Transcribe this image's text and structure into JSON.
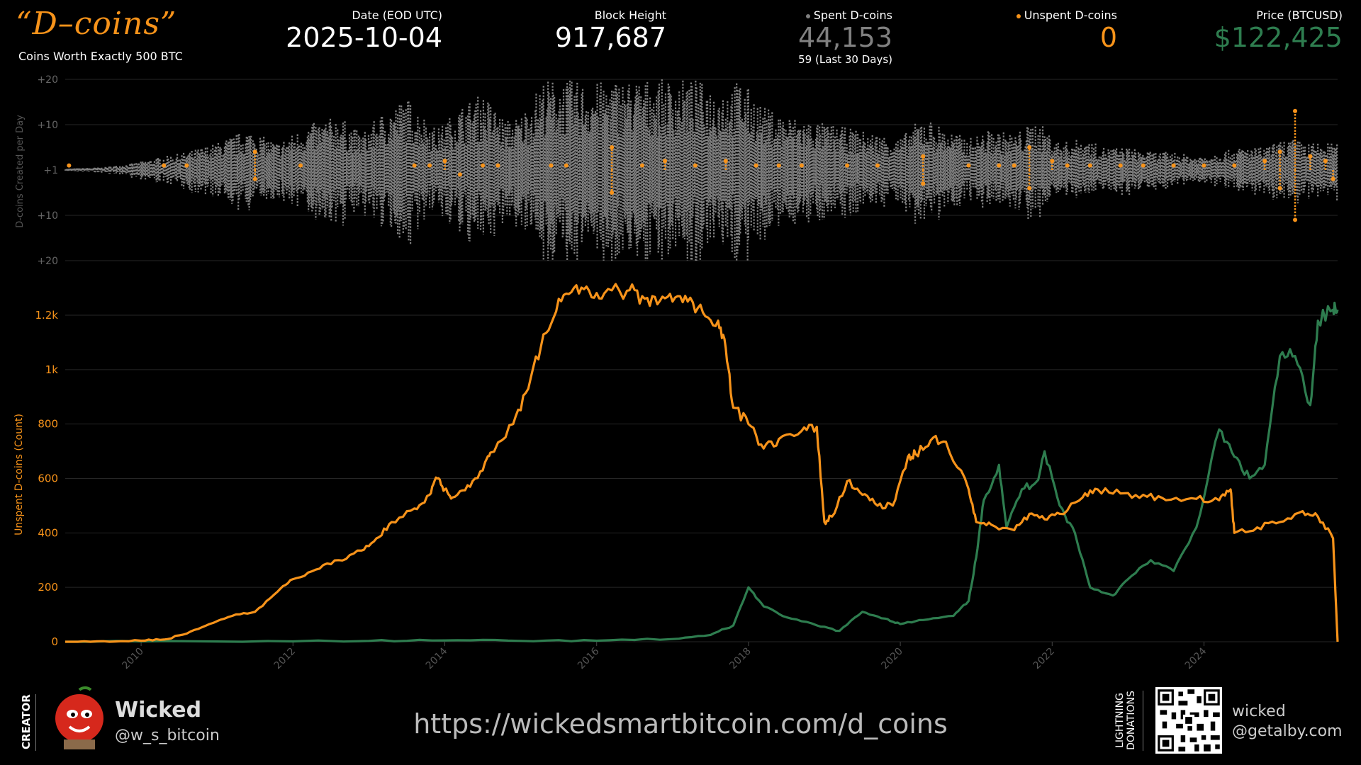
{
  "header": {
    "brand_script": "“D–coins”",
    "brand_subtitle": "Coins Worth Exactly 500 BTC",
    "date_label": "Date (EOD UTC)",
    "date_value": "2025-10-04",
    "block_label": "Block Height",
    "block_value": "917,687",
    "spent_label": "Spent D-coins",
    "spent_value": "44,153",
    "spent_sub": "59 (Last 30 Days)",
    "unspent_label": "Unspent D-coins",
    "unspent_value": "0",
    "price_label": "Price (BTCUSD)",
    "price_value": "$122,425"
  },
  "colors": {
    "spent": "#808080",
    "unspent": "#f7931a",
    "price": "#2e7d4f",
    "white": "#ffffff",
    "grid": "#262626"
  },
  "chart_data": [
    {
      "type": "scatter",
      "ylabel": "D-coins Created per Day",
      "yticks": [
        "+20",
        "+10",
        "+1",
        "+10",
        "+20"
      ],
      "description_series": [
        {
          "name": "Spent D-coins",
          "color": "#808080"
        },
        {
          "name": "Unspent D-coins",
          "color": "#f7931a"
        }
      ],
      "xlim": [
        2009.0,
        2025.76
      ],
      "ylim": [
        -20,
        20
      ],
      "spent_envelope": {
        "x": [
          2009.0,
          2009.5,
          2009.9,
          2010.3,
          2010.6,
          2011.0,
          2011.4,
          2011.8,
          2012.2,
          2012.6,
          2012.9,
          2013.2,
          2013.5,
          2013.9,
          2014.2,
          2014.5,
          2014.8,
          2015.0,
          2015.3,
          2015.6,
          2015.9,
          2016.2,
          2016.5,
          2016.8,
          2017.1,
          2017.3,
          2017.6,
          2017.9,
          2018.2,
          2018.5,
          2018.8,
          2019.1,
          2019.4,
          2019.7,
          2020.0,
          2020.3,
          2020.6,
          2020.9,
          2021.2,
          2021.5,
          2021.8,
          2022.1,
          2022.4,
          2022.7,
          2023.0,
          2023.3,
          2023.6,
          2023.9,
          2024.2,
          2024.5,
          2024.8,
          2025.1,
          2025.4,
          2025.76
        ],
        "amp": [
          0.3,
          0.6,
          1.5,
          3,
          4,
          6,
          9,
          6,
          10,
          12,
          8,
          13,
          16,
          9,
          14,
          17,
          11,
          12,
          20,
          20,
          19,
          20,
          20,
          20,
          20,
          20,
          18,
          20,
          14,
          12,
          11,
          10,
          9,
          8,
          7,
          12,
          9,
          7,
          9,
          8,
          11,
          6,
          7,
          5,
          5,
          4,
          4,
          3,
          4,
          5,
          5,
          7,
          6,
          6
        ]
      },
      "unspent_points": [
        {
          "x": 2009.05,
          "y": 1
        },
        {
          "x": 2010.3,
          "y": 1
        },
        {
          "x": 2010.6,
          "y": 1
        },
        {
          "x": 2011.5,
          "y": 4
        },
        {
          "x": 2011.5,
          "y": -2
        },
        {
          "x": 2012.1,
          "y": 1
        },
        {
          "x": 2013.6,
          "y": 1
        },
        {
          "x": 2013.8,
          "y": 1
        },
        {
          "x": 2014.0,
          "y": 2
        },
        {
          "x": 2014.2,
          "y": -1
        },
        {
          "x": 2014.5,
          "y": 1
        },
        {
          "x": 2014.7,
          "y": 1
        },
        {
          "x": 2015.4,
          "y": 1
        },
        {
          "x": 2015.6,
          "y": 1
        },
        {
          "x": 2016.2,
          "y": 5
        },
        {
          "x": 2016.2,
          "y": -5
        },
        {
          "x": 2016.6,
          "y": 1
        },
        {
          "x": 2016.9,
          "y": 2
        },
        {
          "x": 2017.3,
          "y": 1
        },
        {
          "x": 2017.7,
          "y": 2
        },
        {
          "x": 2018.1,
          "y": 1
        },
        {
          "x": 2018.4,
          "y": 1
        },
        {
          "x": 2018.7,
          "y": 1
        },
        {
          "x": 2019.3,
          "y": 1
        },
        {
          "x": 2019.7,
          "y": 1
        },
        {
          "x": 2020.3,
          "y": 3
        },
        {
          "x": 2020.3,
          "y": -3
        },
        {
          "x": 2020.9,
          "y": 1
        },
        {
          "x": 2021.3,
          "y": 1
        },
        {
          "x": 2021.5,
          "y": 1
        },
        {
          "x": 2021.7,
          "y": 5
        },
        {
          "x": 2021.7,
          "y": -4
        },
        {
          "x": 2022.0,
          "y": 2
        },
        {
          "x": 2022.2,
          "y": 1
        },
        {
          "x": 2022.5,
          "y": 1
        },
        {
          "x": 2022.9,
          "y": 1
        },
        {
          "x": 2023.2,
          "y": 1
        },
        {
          "x": 2023.6,
          "y": 1
        },
        {
          "x": 2024.0,
          "y": 1
        },
        {
          "x": 2024.4,
          "y": 1
        },
        {
          "x": 2024.8,
          "y": 2
        },
        {
          "x": 2025.0,
          "y": 4
        },
        {
          "x": 2025.0,
          "y": -4
        },
        {
          "x": 2025.2,
          "y": 13
        },
        {
          "x": 2025.2,
          "y": -11
        },
        {
          "x": 2025.4,
          "y": 3
        },
        {
          "x": 2025.6,
          "y": 2
        },
        {
          "x": 2025.7,
          "y": -2
        }
      ]
    },
    {
      "type": "line",
      "ylabel": "Unspent D-coins (Count)",
      "xlim": [
        2009.0,
        2025.76
      ],
      "ylim": [
        0,
        1350
      ],
      "yticks": [
        0,
        200,
        400,
        600,
        800,
        1000,
        1200
      ],
      "ytick_labels": [
        "0",
        "200",
        "400",
        "600",
        "800",
        "1k",
        "1.2k"
      ],
      "xticks": [
        2010,
        2012,
        2014,
        2016,
        2018,
        2020,
        2022,
        2024
      ],
      "series": [
        {
          "name": "Unspent D-coins",
          "color": "#f7931a",
          "x": [
            2009.0,
            2009.5,
            2010.0,
            2010.3,
            2010.6,
            2010.9,
            2011.2,
            2011.5,
            2011.8,
            2012.0,
            2012.3,
            2012.6,
            2012.9,
            2013.1,
            2013.3,
            2013.6,
            2013.8,
            2013.9,
            2014.0,
            2014.1,
            2014.3,
            2014.5,
            2014.6,
            2014.9,
            2015.1,
            2015.3,
            2015.5,
            2015.7,
            2015.9,
            2016.1,
            2016.4,
            2016.6,
            2016.8,
            2017.0,
            2017.2,
            2017.4,
            2017.6,
            2017.7,
            2017.8,
            2018.0,
            2018.2,
            2018.4,
            2018.7,
            2018.9,
            2019.0,
            2019.1,
            2019.3,
            2019.5,
            2019.7,
            2019.9,
            2020.1,
            2020.2,
            2020.4,
            2020.6,
            2020.9,
            2021.0,
            2021.2,
            2021.5,
            2021.7,
            2021.9,
            2022.1,
            2022.4,
            2022.6,
            2022.9,
            2023.2,
            2023.5,
            2023.9,
            2024.2,
            2024.35,
            2024.4,
            2024.7,
            2025.0,
            2025.3,
            2025.5,
            2025.7,
            2025.76
          ],
          "y": [
            0,
            2,
            4,
            8,
            30,
            65,
            95,
            110,
            185,
            230,
            265,
            300,
            335,
            380,
            440,
            490,
            540,
            600,
            560,
            530,
            575,
            630,
            695,
            800,
            930,
            1130,
            1260,
            1300,
            1290,
            1280,
            1290,
            1270,
            1240,
            1250,
            1250,
            1210,
            1180,
            1080,
            860,
            800,
            710,
            745,
            775,
            790,
            440,
            460,
            590,
            540,
            500,
            500,
            680,
            690,
            740,
            735,
            560,
            440,
            430,
            410,
            470,
            450,
            470,
            530,
            560,
            545,
            540,
            520,
            525,
            520,
            560,
            400,
            420,
            440,
            480,
            460,
            380,
            0
          ]
        },
        {
          "name": "Price (BTCUSD)",
          "color": "#2e7d4f",
          "x": [
            2009.0,
            2011.0,
            2013.0,
            2014.0,
            2015.0,
            2016.0,
            2017.0,
            2017.5,
            2017.8,
            2018.0,
            2018.2,
            2018.5,
            2018.9,
            2019.2,
            2019.5,
            2019.8,
            2020.0,
            2020.3,
            2020.7,
            2020.9,
            2021.0,
            2021.1,
            2021.3,
            2021.4,
            2021.6,
            2021.8,
            2021.9,
            2022.1,
            2022.3,
            2022.5,
            2022.8,
            2023.0,
            2023.3,
            2023.6,
            2023.9,
            2024.2,
            2024.4,
            2024.6,
            2024.8,
            2025.0,
            2025.2,
            2025.4,
            2025.5,
            2025.7,
            2025.76
          ],
          "y": [
            0,
            1,
            3,
            5,
            3,
            4,
            10,
            25,
            60,
            200,
            130,
            90,
            60,
            40,
            110,
            85,
            65,
            80,
            95,
            150,
            310,
            520,
            650,
            420,
            560,
            590,
            700,
            500,
            400,
            200,
            170,
            230,
            300,
            260,
            420,
            780,
            680,
            600,
            650,
            1050,
            1050,
            870,
            1180,
            1220,
            1220
          ]
        }
      ]
    }
  ],
  "footer": {
    "creator_label": "CREATOR",
    "creator_name": "Wicked",
    "creator_handle": "@w_s_bitcoin",
    "url": "https://wickedsmartbitcoin.com/d_coins",
    "donation_label": "LIGHTNING DONATIONS",
    "ln_name": "wicked",
    "ln_address": "@getalby.com"
  }
}
